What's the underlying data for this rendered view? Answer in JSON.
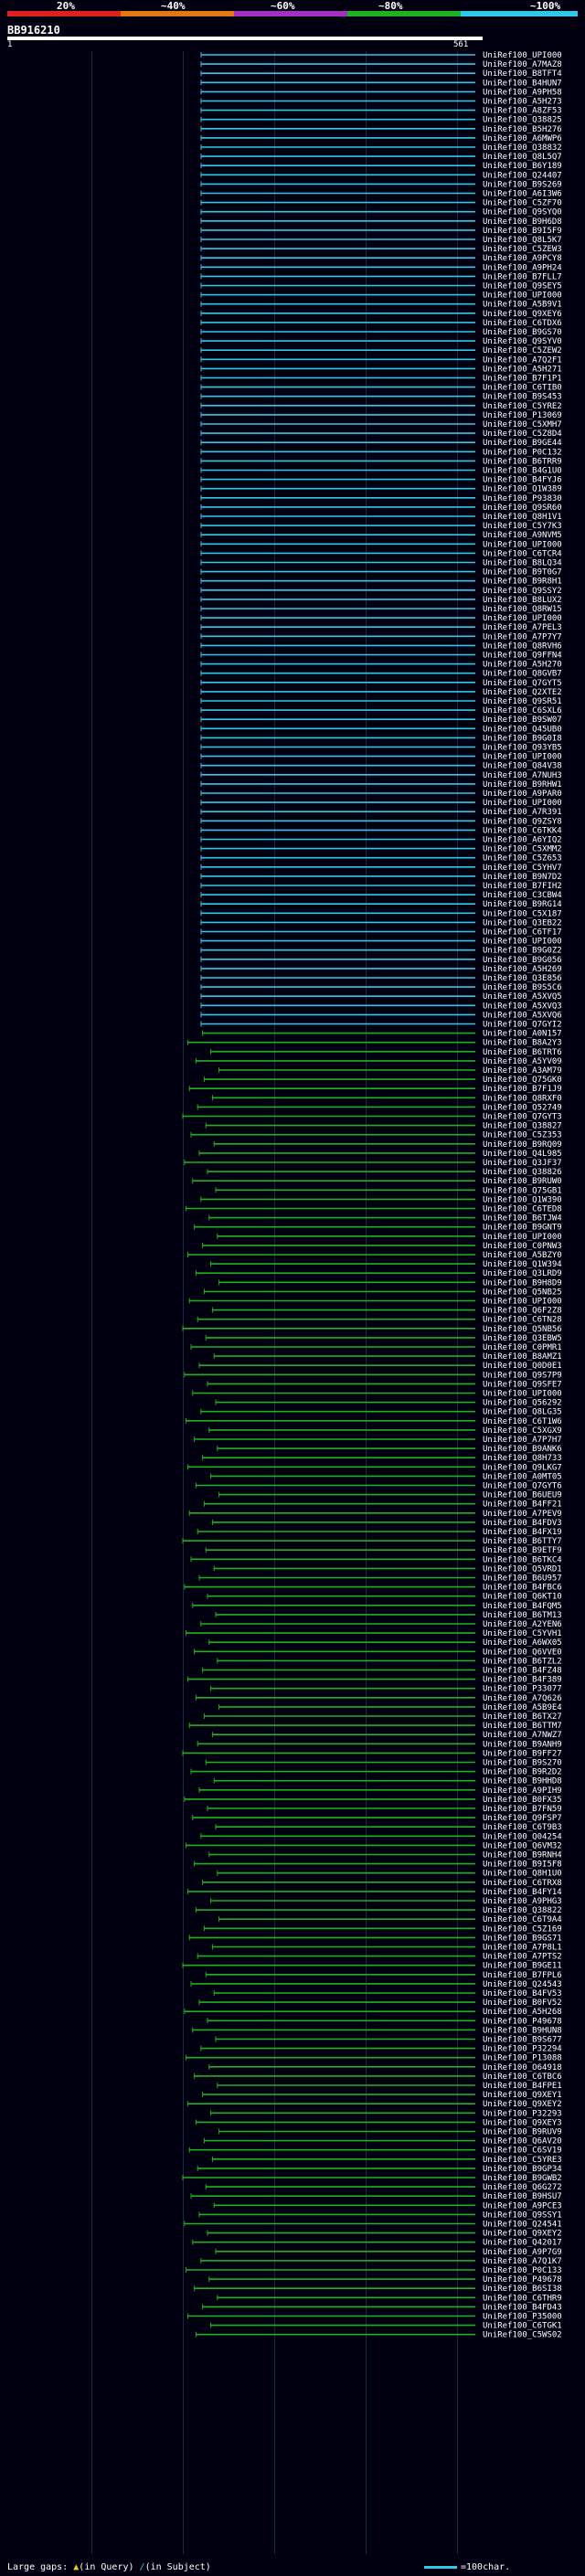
{
  "scale": {
    "labels": [
      "20%",
      "~40%",
      "~60%",
      "~80%",
      "~100%"
    ],
    "colors": [
      "#e02020",
      "#e07a10",
      "#a030c0",
      "#20b020",
      "#30c8e8"
    ]
  },
  "query_id": "BB916210",
  "ruler": {
    "start": "1",
    "end": "561"
  },
  "hits": {
    "prefix": "UniRef100_",
    "ids": [
      "UPI000",
      "A7MAZ8",
      "B8TFT4",
      "B4HUN7",
      "A9PH58",
      "A5H273",
      "A8ZF53",
      "Q38825",
      "B5H276",
      "A6MWP6",
      "Q38832",
      "Q8L5Q7",
      "B6Y189",
      "Q24407",
      "B9S269",
      "A6I3W6",
      "C5ZF70",
      "Q9SYQ0",
      "B9H6D8",
      "B9I5F9",
      "Q8L5K7",
      "C5ZEW3",
      "A9PCY8",
      "A9PH24",
      "B7FLL7",
      "Q9SEY5",
      "UPI000",
      "A5B9V1",
      "Q9XEY6",
      "C6TDX6",
      "B9GS70",
      "Q9SYV0",
      "C5ZEW2",
      "A7Q2F1",
      "A5H271",
      "B7F1P1",
      "C6TIB0",
      "B9S453",
      "C5YRE2",
      "P13069",
      "C5XMH7",
      "C5Z8D4",
      "B9GE44",
      "P0C132",
      "B6TRR9",
      "B4G1U0",
      "B4FYJ6",
      "Q1W389",
      "P93830",
      "Q9SR60",
      "Q8H1V1",
      "C5Y7K3",
      "A9NVM5",
      "UPI000",
      "C6TCR4",
      "B8LQ34",
      "B9T0G7",
      "B9R8H1",
      "Q9SSY2",
      "B8LUX2",
      "Q8RW15",
      "UPI000",
      "A7PEL3",
      "A7P7Y7",
      "Q8RVH6",
      "Q9FFN4",
      "A5H270",
      "Q8GVB7",
      "Q7GYT5",
      "Q2XTE2",
      "Q9SR51",
      "C6SXL6",
      "B9SW07",
      "Q45UB0",
      "B9G0I8",
      "Q93YB5",
      "UPI000",
      "Q84V38",
      "A7NUH3",
      "B9RHW1",
      "A9PAR0",
      "UPI000",
      "A7R391",
      "Q9ZSY8",
      "C6TKK4",
      "A6YIQ2",
      "C5XMM2",
      "C5Z653",
      "C5YHV7",
      "B9N7D2",
      "B7FIH2",
      "C3CBW4",
      "B9RG14",
      "C5X187",
      "Q3EB22",
      "C6TF17",
      "UPI000",
      "B9G0Z2",
      "B9G056",
      "A5H269",
      "Q3E856",
      "B9S5C6",
      "A5XVQ5",
      "A5XVQ3",
      "A5XVQ6",
      "Q7GYI2",
      "A0N157",
      "B8A2Y3",
      "B6TRT6",
      "A5YV09",
      "A3AM79",
      "Q75GK0",
      "B7F1J9",
      "Q8RXF0",
      "Q52749",
      "Q7GYT3",
      "Q38827",
      "C5Z353",
      "B9RQ09",
      "Q4L985",
      "Q3JF37",
      "Q38826",
      "B9RUW0",
      "Q75GB1",
      "Q1W390",
      "C6TED8",
      "B6TJW4",
      "B9GNT9",
      "UPI000",
      "C0PNW3",
      "A5BZY0",
      "Q1W394",
      "Q3LRD9",
      "B9H8D9",
      "Q5NB25",
      "UPI000",
      "Q6F2Z8",
      "C6TN28",
      "Q5NB56",
      "Q3EBW5",
      "C0PMR1",
      "B8AMZ1",
      "Q0D0E1",
      "Q9S7P9",
      "Q9SFE7",
      "UPI000",
      "Q56292",
      "Q8LG35",
      "C6T1W6",
      "C5XGX9",
      "A7P7H7",
      "B9ANK6",
      "Q8H733",
      "Q9LKG7",
      "A0MT05",
      "Q7GYT6",
      "B6UEU9",
      "B4FF21",
      "A7PEV9",
      "B4FDV3",
      "B4FX19",
      "B6TTY7",
      "B9ETF9",
      "B6TKC4",
      "Q5VRD1",
      "B6U957",
      "B4FBC6",
      "Q6KT10",
      "B4FQM5",
      "B6TM13",
      "A2YEN6",
      "C5YVH1",
      "A6WX05",
      "Q6VVE0",
      "B6TZL2",
      "B4FZ48",
      "B4F389",
      "P33077",
      "A7Q626",
      "A5B9E4",
      "B6TX27",
      "B6TTM7",
      "A7NWZ7",
      "B9ANH9",
      "B9FF27",
      "B9S270",
      "B9R2D2",
      "B9HHD8",
      "A9PIH9",
      "B0FX35",
      "B7FN59",
      "Q9FSP7",
      "C6T9B3",
      "Q04254",
      "Q6VM32",
      "B9RNH4",
      "B9I5F8",
      "Q8H1U0",
      "C6TRX8",
      "B4FY14",
      "A9PHG3",
      "Q38822",
      "C6T9A4",
      "C5Z169",
      "B9GS71",
      "A7P8L1",
      "A7PTS2",
      "B9GE11",
      "B7FPL6",
      "Q24543",
      "B4FV53",
      "B0FV52",
      "A5H268",
      "P49678",
      "B9HUN8",
      "B9S677",
      "P32294",
      "P13088",
      "O64918",
      "C6TBC6",
      "B4FPE1",
      "Q9XEY1",
      "Q9XEY2",
      "P32293",
      "Q9XEY3",
      "B9RUV9",
      "Q6AV20",
      "C6SV19",
      "C5YRE3",
      "B9GP34",
      "B9GWB2",
      "Q6G272",
      "B9HSU7",
      "A9PCE3",
      "Q9SSY1",
      "Q24541",
      "Q9XEY2",
      "Q42017",
      "A9P7G9",
      "A7Q1K7",
      "P0C133",
      "P49678",
      "B6SI38",
      "C6THR9",
      "B4FD43",
      "P35000",
      "C6TGK1",
      "C5WS02"
    ]
  },
  "legend": {
    "large_gaps": "Large gaps:",
    "in_query": "(in Query)",
    "in_subject": "(in Subject)",
    "scale_note": "=100char."
  }
}
